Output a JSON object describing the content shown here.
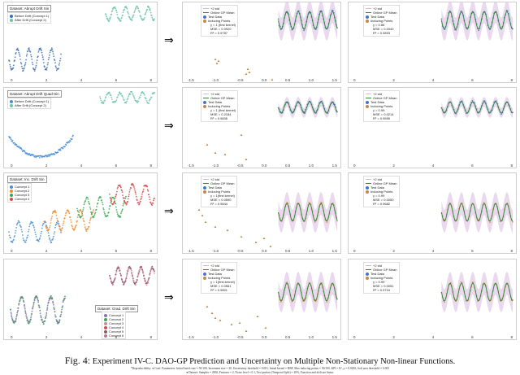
{
  "caption": {
    "fig_label": "Fig. 4:",
    "text": "Experiment  IV-C. DAO-GP Prediction and Uncertainty on Multiple Non-Stationary Non-linear Functions."
  },
  "footnote": {
    "line1": "*Reproducibility:   ● Conf. Parameters: Initial batch size = 50/100, Increment size = 20, Uncertainty threshold = 0.001, Initial kernel = RBF, Max inducing points = 50/100, KPI = K², ρ = 0.0002, Soft area threshold = 0.005",
    "line2": "● Dataset: Samples = 2000, Features = 2, Noise level = 0.1, Test portion (Temporal Split) = 20%, Function and drift are linear."
  },
  "rows": [
    {
      "dataset": "Dataset: Abrupt Drift Sin",
      "legend": [
        "Before Drift (Concept 1)",
        "After Drift (Concept 2)"
      ],
      "mid": [
        "+2 std",
        "Online GP Mean",
        "Test Data",
        "Inducing Points",
        "γ = 1 (first kernel)",
        "MSE = 0.0920",
        "R² = 0.9787"
      ],
      "right": [
        "+2 std",
        "Online GP Mean",
        "Test Data",
        "Inducing Points",
        "γ = 0.86",
        "MSE = 0.0040",
        "R² = 0.9893"
      ]
    },
    {
      "dataset": "Dataset: Abrupt Drift Quad-Sin",
      "legend": [
        "Before Drift (Concept 1)",
        "After Drift (Concept 2)"
      ],
      "mid": [
        "+2 std",
        "Online GP Mean",
        "Test Data",
        "Inducing Points",
        "γ = 1 (first kernel)",
        "MSE = 0.2184",
        "R² = 0.9835"
      ],
      "right": [
        "+2 std",
        "Online GP Mean",
        "Test Data",
        "Inducing Points",
        "γ = 0.99",
        "MSE = 0.0214",
        "R² = 0.9595"
      ]
    },
    {
      "dataset": "Dataset: Inc. Drift Sin",
      "legend": [
        "Concept 1",
        "Concept 2",
        "Concept 3",
        "Concept 4"
      ],
      "mid": [
        "+2 std",
        "Online GP Mean",
        "Test Data",
        "Inducing Points",
        "γ = 1(first kernel)",
        "MSE = 0.0590",
        "R² = 0.9844"
      ],
      "right": [
        "+2 std",
        "Online GP Mean",
        "Test Data",
        "Inducing Points",
        "γ = 0.99",
        "MSE = 0.0050",
        "R² = 0.9682"
      ]
    },
    {
      "dataset": "Dataset: Grad. Drift Sin",
      "legend": [
        "Concept 1",
        "Concept 2",
        "Concept 3",
        "Concept 4",
        "Concept 5",
        "Concept 6"
      ],
      "mid": [
        "+2 std",
        "Online GP Mean",
        "Test Data",
        "Inducing Points",
        "γ = 1(first kernel)",
        "MSE = 0.0561",
        "R² = 0.9801"
      ],
      "right": [
        "+2 std",
        "Online GP Mean",
        "Test Data",
        "Inducing Points",
        "γ = 0.99",
        "MSE = 0.0051",
        "R² = 0.9724"
      ]
    }
  ],
  "colors": {
    "c1": "#3b6fb6",
    "c2": "#6cc4a4",
    "c3": "#4a8fd6",
    "c4": "#f08a2c",
    "c5": "#3aa84a",
    "c6": "#d94a4a",
    "c7": "#8c6bb8",
    "c8": "#c98aa0",
    "gp": "#2e8b3a",
    "band": "#d9b8e0",
    "test": "#4a73c8",
    "induce": "#c8864a"
  },
  "ticks": {
    "left": [
      "0",
      "2",
      "4",
      "6",
      "8"
    ],
    "mid": [
      "-1.5",
      "-1.0",
      "-0.5",
      "0.0",
      "0.5",
      "1.0",
      "1.5"
    ],
    "right": [
      "0",
      "2",
      "4",
      "6",
      "8"
    ]
  }
}
